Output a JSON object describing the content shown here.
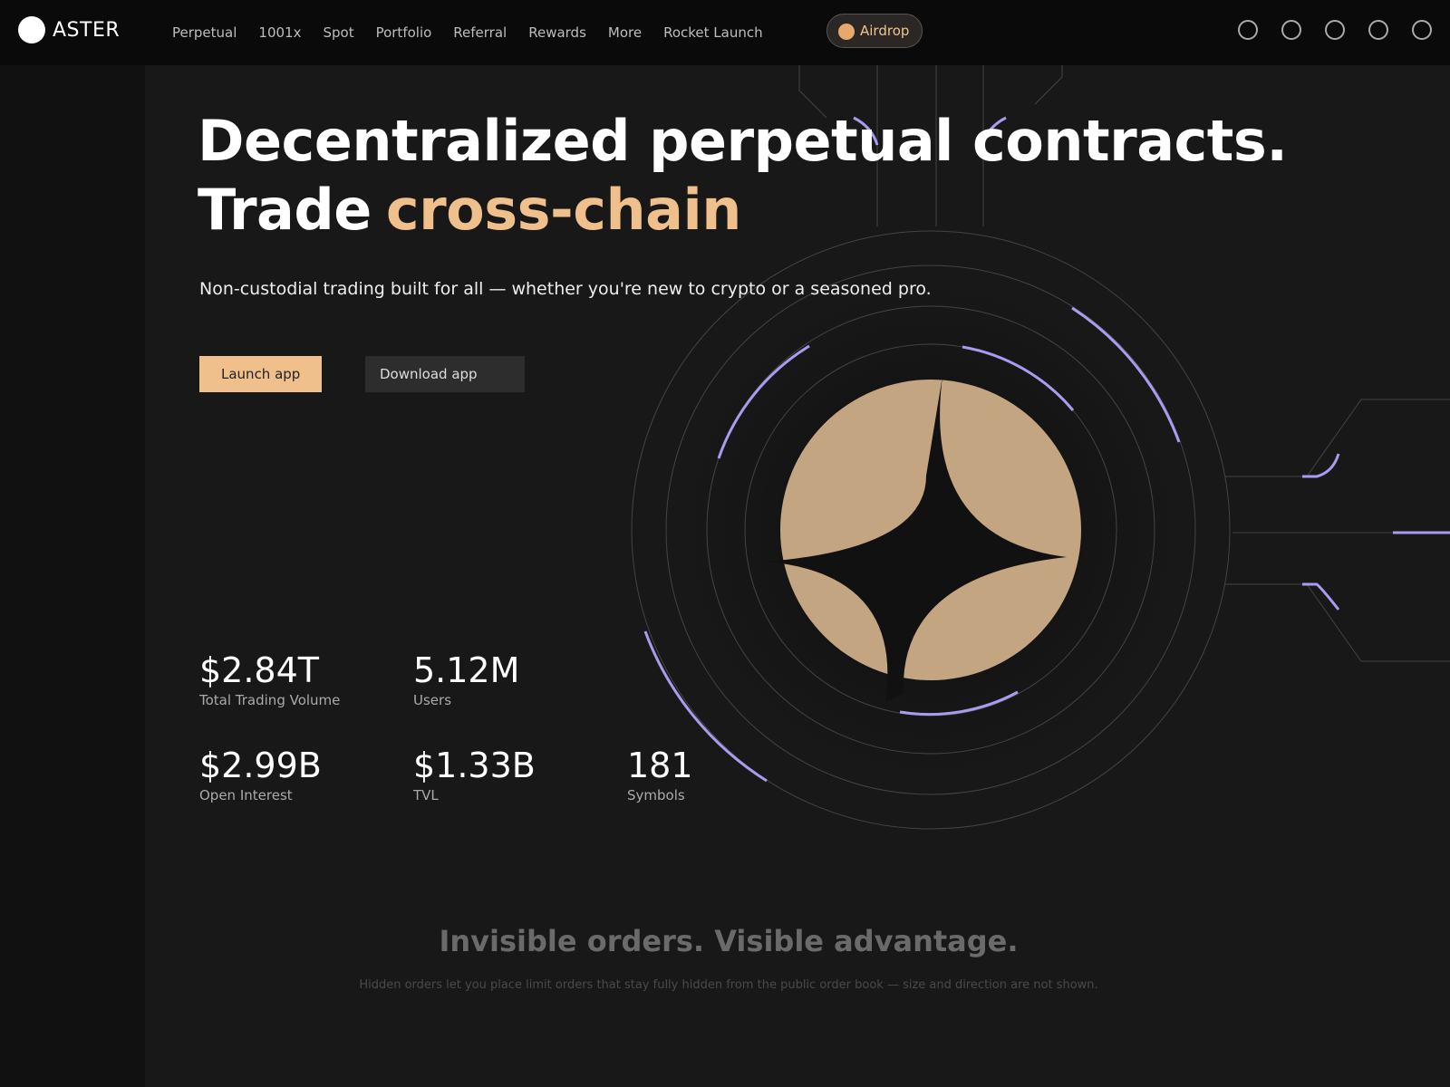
{
  "header": {
    "brand": "ASTER",
    "nav": [
      "Perpetual",
      "1001x",
      "Spot",
      "Portfolio",
      "Referral",
      "Rewards",
      "More",
      "Rocket Launch"
    ],
    "airdrop": "Airdrop"
  },
  "hero": {
    "title_line1": "Decentralized perpetual contracts.",
    "title_line2": "Trade",
    "title_highlight": "cross-chain",
    "subtitle": "Non-custodial trading built for all — whether you're new to crypto or a seasoned pro.",
    "buttons": [
      "Launch app",
      "Download app"
    ]
  },
  "stats": [
    {
      "value": "$2.84T",
      "label": "Total Trading Volume"
    },
    {
      "value": "5.12M",
      "label": "Users"
    },
    {
      "value": "$2.99B",
      "label": "Open Interest"
    },
    {
      "value": "$1.33B",
      "label": "TVL"
    },
    {
      "value": "181",
      "label": "Symbols"
    }
  ],
  "section": {
    "title": "Invisible orders. Visible advantage.",
    "text": "Hidden orders let you place limit orders that stay fully hidden from the public order book — size and direction are not shown."
  }
}
